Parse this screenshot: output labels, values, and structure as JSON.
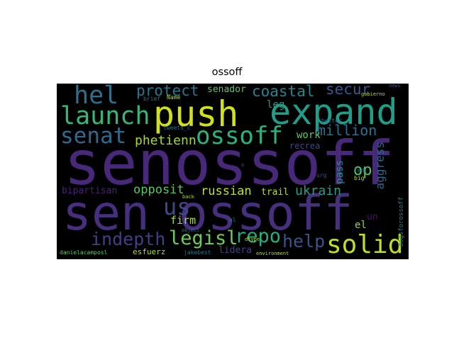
{
  "title": "ossoff",
  "words": {
    "senossoff": {
      "text": "senossoff",
      "color": "#482878"
    },
    "sen_ossoff": {
      "text": "sen ossoff",
      "color": "#46307e"
    },
    "push": {
      "text": "push",
      "color": "#d0e11c"
    },
    "expand": {
      "text": "expand",
      "color": "#1f9e89"
    },
    "hel": {
      "text": "hel",
      "color": "#2d708e"
    },
    "launch": {
      "text": "launch",
      "color": "#35b779"
    },
    "senat": {
      "text": "senat",
      "color": "#31688e"
    },
    "ossoff": {
      "text": "ossoff",
      "color": "#2db27d"
    },
    "solid": {
      "text": "solid",
      "color": "#bddf26"
    },
    "us": {
      "text": "us",
      "color": "#3e4a89"
    },
    "legisl": {
      "text": "legisl",
      "color": "#6ccd5a"
    },
    "indepth": {
      "text": "indepth",
      "color": "#433e85"
    },
    "repo": {
      "text": "repo",
      "color": "#26ad81"
    },
    "help": {
      "text": "help",
      "color": "#3b528b"
    },
    "protect": {
      "text": "protect",
      "color": "#2a768e"
    },
    "coastal": {
      "text": "coastal",
      "color": "#25858e"
    },
    "secur": {
      "text": "secur",
      "color": "#38588c"
    },
    "million": {
      "text": "million",
      "color": "#2e6f8e"
    },
    "phetienn": {
      "text": "phetienn",
      "color": "#a0da39"
    },
    "op": {
      "text": "op",
      "color": "#52c569"
    },
    "opposit": {
      "text": "opposit",
      "color": "#58c765"
    },
    "russian": {
      "text": "russian",
      "color": "#c2df23"
    },
    "ukrain": {
      "text": "ukrain",
      "color": "#1fa187"
    },
    "bipartisan": {
      "text": "bipartisan",
      "color": "#482173"
    },
    "firm": {
      "text": "firm",
      "color": "#a5db36"
    },
    "senador": {
      "text": "senador",
      "color": "#5cc863"
    },
    "leg": {
      "text": "leg",
      "color": "#1e9b8a"
    },
    "work": {
      "text": "work",
      "color": "#5ec962"
    },
    "recrea": {
      "text": "recrea",
      "color": "#3e4989"
    },
    "aggress": {
      "text": "aggress",
      "color": "#31678e"
    },
    "pass": {
      "text": "pass",
      "color": "#21918c"
    },
    "trail": {
      "text": "trail",
      "color": "#b8de29"
    },
    "el": {
      "text": "el",
      "color": "#90d743"
    },
    "un": {
      "text": "un",
      "color": "#471365"
    },
    "lidera": {
      "text": "lidera",
      "color": "#404688"
    },
    "esfuerz": {
      "text": "esfuerz",
      "color": "#addc30"
    },
    "danielacamposl": {
      "text": "danielacamposl",
      "color": "#5ec962"
    },
    "jakebest": {
      "text": "jakebest",
      "color": "#2c728e"
    },
    "environment": {
      "text": "environment",
      "color": "#b5de2b"
    },
    "dogsforossoff": {
      "text": "dogsforossoff",
      "color": "#287d8e"
    },
    "brief": {
      "text": "brief",
      "color": "#2d708e"
    },
    "name": {
      "text": "Name",
      "color": "#addc30"
    },
    "tweets": {
      "text": "tweets_c",
      "color": "#2c728e"
    },
    "gobierno": {
      "text": "gobierno",
      "color": "#b5de2b"
    },
    "better": {
      "text": "better",
      "color": "#2e6e8e"
    },
    "news": {
      "text": "news",
      "color": "#3b528b"
    },
    "urg": {
      "text": "urg",
      "color": "#3b528b"
    },
    "fed": {
      "text": "fed",
      "color": "#2c728e"
    },
    "big": {
      "text": "big",
      "color": "#addc30"
    },
    "back": {
      "text": "back",
      "color": "#addc30"
    },
    "al": {
      "text": "al",
      "color": "#2c728e"
    },
    "object": {
      "text": "object",
      "color": "#2c728e"
    },
    "dtype": {
      "text": "dtype",
      "color": "#b5de2b"
    },
    "dot": {
      "text": "o",
      "color": "#3b528b"
    }
  }
}
